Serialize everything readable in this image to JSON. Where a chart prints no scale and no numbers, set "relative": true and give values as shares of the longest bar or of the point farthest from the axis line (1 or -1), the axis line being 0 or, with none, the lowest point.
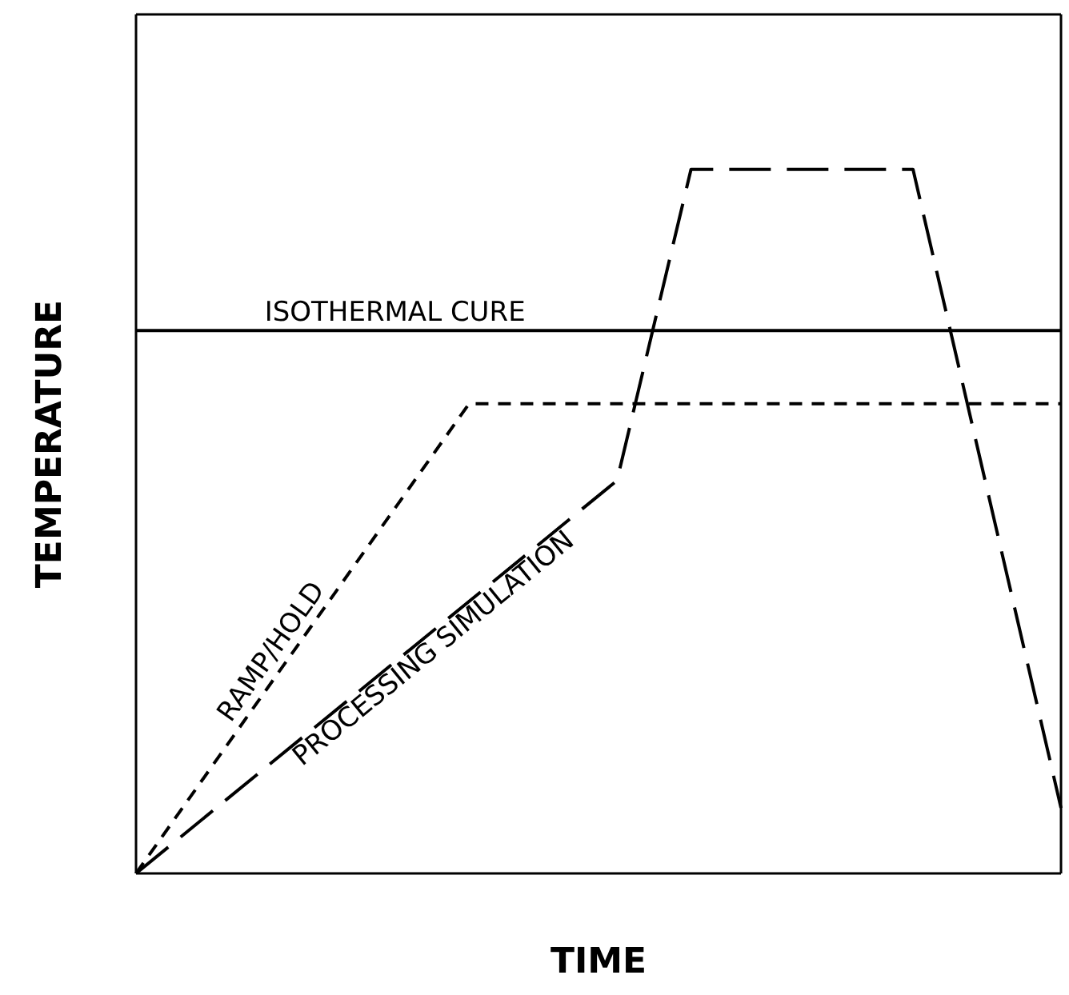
{
  "chart_data": {
    "type": "line",
    "relative": true,
    "xlabel": "TIME",
    "ylabel": "TEMPERATURE",
    "tick_labels": false,
    "legend": false,
    "grid": false,
    "marker": "none",
    "categories": [
      null,
      null,
      null,
      null,
      null,
      null,
      null,
      null,
      null,
      null,
      null,
      null,
      null,
      null,
      null,
      null,
      null,
      null,
      null,
      null,
      null,
      null,
      null,
      null,
      null,
      null
    ],
    "series": [
      {
        "name": "ISOTHERMAL CURE",
        "color": "#000000",
        "line_style": "solid",
        "values": [
          0.771,
          null,
          null,
          null,
          null,
          null,
          null,
          null,
          null,
          null,
          null,
          null,
          null,
          null,
          null,
          null,
          null,
          null,
          null,
          null,
          null,
          null,
          null,
          null,
          null,
          0.771
        ]
      },
      {
        "name": "RAMP/HOLD",
        "color": "#000000",
        "line_style": "dashed",
        "values": [
          0,
          null,
          null,
          null,
          null,
          null,
          null,
          null,
          null,
          0.667,
          null,
          null,
          null,
          null,
          null,
          null,
          null,
          null,
          null,
          null,
          null,
          null,
          null,
          null,
          null,
          0.667
        ]
      },
      {
        "name": "PROCESSING SIMULATION",
        "color": "#000000",
        "line_style": "dashed",
        "values": [
          0,
          null,
          null,
          null,
          null,
          null,
          null,
          null,
          null,
          null,
          null,
          null,
          null,
          0.558,
          null,
          1,
          null,
          null,
          null,
          null,
          null,
          1,
          null,
          null,
          null,
          0.093
        ]
      }
    ]
  }
}
